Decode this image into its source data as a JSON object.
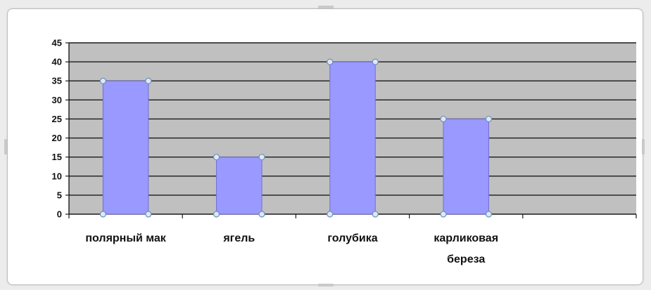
{
  "colors": {
    "plot_area": "#c0c0c0",
    "bar_fill": "#9999ff",
    "bar_stroke": "#6f6fd6",
    "gridline": "#1a1a1a",
    "handle_fill": "#dfe8f5",
    "handle_stroke": "#6d8fbf"
  },
  "chart_data": {
    "type": "bar",
    "categories": [
      [
        "полярный мак"
      ],
      [
        "ягель"
      ],
      [
        "голубика"
      ],
      [
        "карликовая",
        "береза"
      ],
      [
        ""
      ]
    ],
    "values": [
      35,
      15,
      40,
      25,
      null
    ],
    "ylim": [
      0,
      45
    ],
    "yticks": [
      0,
      5,
      10,
      15,
      20,
      25,
      30,
      35,
      40,
      45
    ],
    "grid": true,
    "legend": "none",
    "selected": true
  }
}
